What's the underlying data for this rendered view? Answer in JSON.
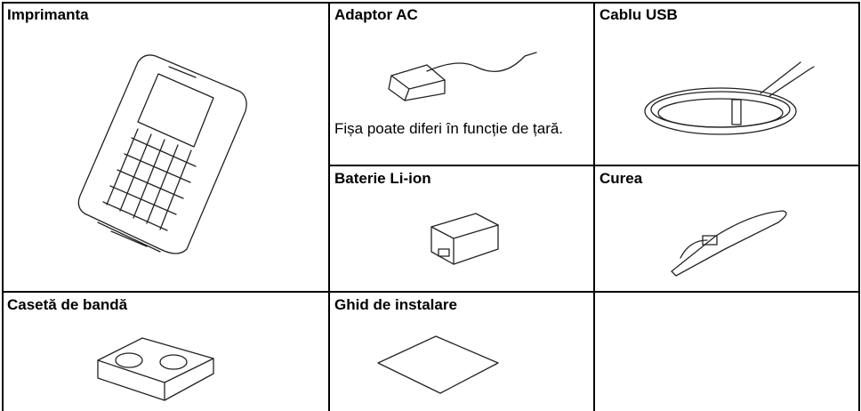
{
  "table": {
    "cells": [
      {
        "title": "Imprimanta"
      },
      {
        "title": "Adaptor AC",
        "note": "Fișa poate diferi în funcție de țară."
      },
      {
        "title": "Cablu USB"
      },
      {
        "title": "Baterie Li-ion"
      },
      {
        "title": "Curea"
      },
      {
        "title": "Casetă de bandă"
      },
      {
        "title": "Ghid de instalare"
      }
    ]
  }
}
